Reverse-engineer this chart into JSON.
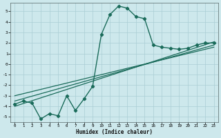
{
  "xlabel": "Humidex (Indice chaleur)",
  "xlim": [
    -0.5,
    23.5
  ],
  "ylim": [
    -5.5,
    5.8
  ],
  "xticks": [
    0,
    1,
    2,
    3,
    4,
    5,
    6,
    7,
    8,
    9,
    10,
    11,
    12,
    13,
    14,
    15,
    16,
    17,
    18,
    19,
    20,
    21,
    22,
    23
  ],
  "yticks": [
    -5,
    -4,
    -3,
    -2,
    -1,
    0,
    1,
    2,
    3,
    4,
    5
  ],
  "bg_color": "#cde8ec",
  "grid_color": "#aacdd4",
  "line_color": "#1a6b5a",
  "curved_series": {
    "x": [
      0,
      1,
      2,
      3,
      4,
      5,
      6,
      7,
      8,
      9,
      10,
      11,
      12,
      13,
      14,
      15,
      16,
      17,
      18,
      19,
      20,
      21,
      22,
      23
    ],
    "y": [
      -3.8,
      -3.5,
      -3.7,
      -5.2,
      -4.7,
      -4.9,
      -3.0,
      -4.4,
      -3.3,
      -2.1,
      2.8,
      4.7,
      5.5,
      5.3,
      4.5,
      4.3,
      1.8,
      1.6,
      1.5,
      1.4,
      1.5,
      1.8,
      2.0,
      2.0
    ]
  },
  "straight_lines": [
    {
      "x": [
        0,
        23
      ],
      "y": [
        -4.0,
        2.1
      ]
    },
    {
      "x": [
        0,
        23
      ],
      "y": [
        -3.5,
        1.8
      ]
    },
    {
      "x": [
        0,
        23
      ],
      "y": [
        -3.0,
        1.6
      ]
    }
  ]
}
